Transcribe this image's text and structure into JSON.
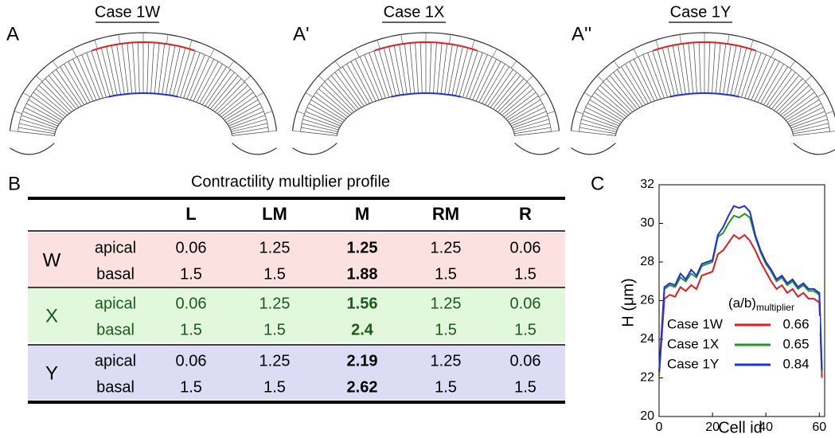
{
  "panels": [
    {
      "label": "A",
      "title": "Case 1W"
    },
    {
      "label": "A'",
      "title": "Case 1X"
    },
    {
      "label": "A''",
      "title": "Case 1Y"
    }
  ],
  "table": {
    "label": "B",
    "title": "Contractility multiplier profile",
    "columns": [
      "L",
      "LM",
      "M",
      "RM",
      "R"
    ],
    "groups": [
      {
        "label": "W",
        "rows": [
          {
            "name": "apical",
            "values": [
              0.06,
              1.25,
              1.25,
              1.25,
              0.06
            ]
          },
          {
            "name": "basal",
            "values": [
              1.5,
              1.5,
              1.88,
              1.5,
              1.5
            ]
          }
        ]
      },
      {
        "label": "X",
        "rows": [
          {
            "name": "apical",
            "values": [
              0.06,
              1.25,
              1.56,
              1.25,
              0.06
            ]
          },
          {
            "name": "basal",
            "values": [
              1.5,
              1.5,
              2.4,
              1.5,
              1.5
            ]
          }
        ]
      },
      {
        "label": "Y",
        "rows": [
          {
            "name": "apical",
            "values": [
              0.06,
              1.25,
              2.19,
              1.25,
              0.06
            ]
          },
          {
            "name": "basal",
            "values": [
              1.5,
              1.5,
              2.62,
              1.5,
              1.5
            ]
          }
        ]
      }
    ]
  },
  "plot": {
    "label": "C",
    "type": "line",
    "x_label": "Cell id",
    "y_label": "H (μm)",
    "legend_title": "(a/b)",
    "legend_title_sub": "multiplier",
    "xlim": [
      0,
      62
    ],
    "ylim": [
      20,
      32
    ],
    "xticks": [
      0,
      20,
      40,
      60
    ],
    "yticks": [
      20,
      22,
      24,
      26,
      28,
      30,
      32
    ],
    "x": [
      0,
      2,
      4,
      6,
      8,
      10,
      12,
      14,
      16,
      18,
      20,
      22,
      24,
      26,
      28,
      30,
      32,
      34,
      36,
      38,
      40,
      42,
      44,
      46,
      48,
      50,
      52,
      54,
      56,
      58,
      60,
      61
    ],
    "series": [
      {
        "name": "Case 1W",
        "color": "#e8191c",
        "ratio": 0.66,
        "values": [
          22.1,
          26.1,
          26.3,
          26.2,
          26.7,
          26.5,
          26.8,
          26.6,
          27.3,
          27.4,
          27.5,
          28.4,
          28.6,
          29.0,
          29.4,
          29.2,
          29.4,
          29.1,
          28.6,
          28.0,
          27.5,
          27.0,
          26.6,
          26.8,
          26.4,
          26.6,
          26.2,
          26.4,
          26.1,
          26.1,
          25.9,
          22.0
        ]
      },
      {
        "name": "Case 1X",
        "color": "#1f9a1f",
        "ratio": 0.65,
        "values": [
          22.2,
          26.6,
          26.8,
          26.7,
          27.2,
          27.0,
          27.4,
          27.2,
          27.8,
          27.9,
          28.0,
          29.3,
          29.5,
          30.0,
          30.4,
          30.3,
          30.5,
          30.3,
          29.3,
          28.5,
          27.9,
          27.5,
          27.0,
          27.2,
          26.8,
          27.0,
          26.6,
          26.8,
          26.5,
          26.5,
          26.3,
          22.3
        ]
      },
      {
        "name": "Case 1Y",
        "color": "#1f2fe0",
        "ratio": 0.84,
        "values": [
          22.3,
          26.7,
          26.9,
          26.8,
          27.4,
          27.1,
          27.6,
          27.3,
          27.9,
          28.0,
          28.1,
          29.4,
          29.8,
          30.4,
          30.9,
          30.8,
          30.9,
          30.6,
          29.4,
          28.6,
          28.0,
          27.6,
          27.1,
          27.3,
          26.9,
          27.1,
          26.7,
          26.9,
          26.6,
          26.6,
          26.4,
          22.4
        ]
      }
    ]
  }
}
